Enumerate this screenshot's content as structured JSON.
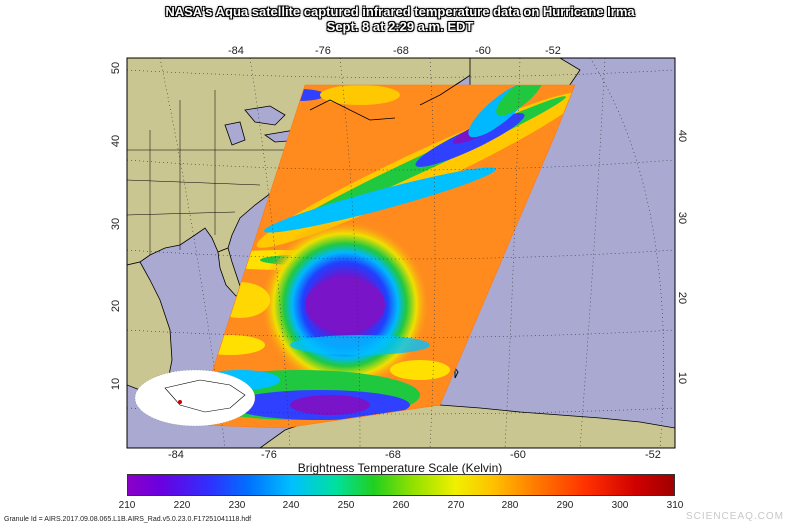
{
  "title_line1": "NASA's Aqua satellite captured infrared temperature data on Hurricane Irma",
  "title_line2": "Sept. 8 at 2:29 a.m. EDT",
  "lon_ticks": [
    "-84",
    "-76",
    "-68",
    "-60",
    "-52"
  ],
  "lat_ticks": [
    "50",
    "40",
    "30",
    "20",
    "10"
  ],
  "scale_title": "Brightness Temperature Scale (Kelvin)",
  "scale_labels": [
    "210",
    "220",
    "230",
    "240",
    "250",
    "260",
    "270",
    "280",
    "290",
    "300",
    "310"
  ],
  "granule_text": "Granule Id = AIRS.2017.09.08.065.L1B.AIRS_Rad.v5.0.23.0.F17251041118.hdf",
  "watermark": "SCIENCEAQ.COM",
  "colors": {
    "ocean": "#a9a9d2",
    "land": "#c9c691",
    "warm_background": "#ff8a1e",
    "eye_core": "#7a14c8",
    "coastline": "#000000",
    "gridlines": "#333333"
  }
}
